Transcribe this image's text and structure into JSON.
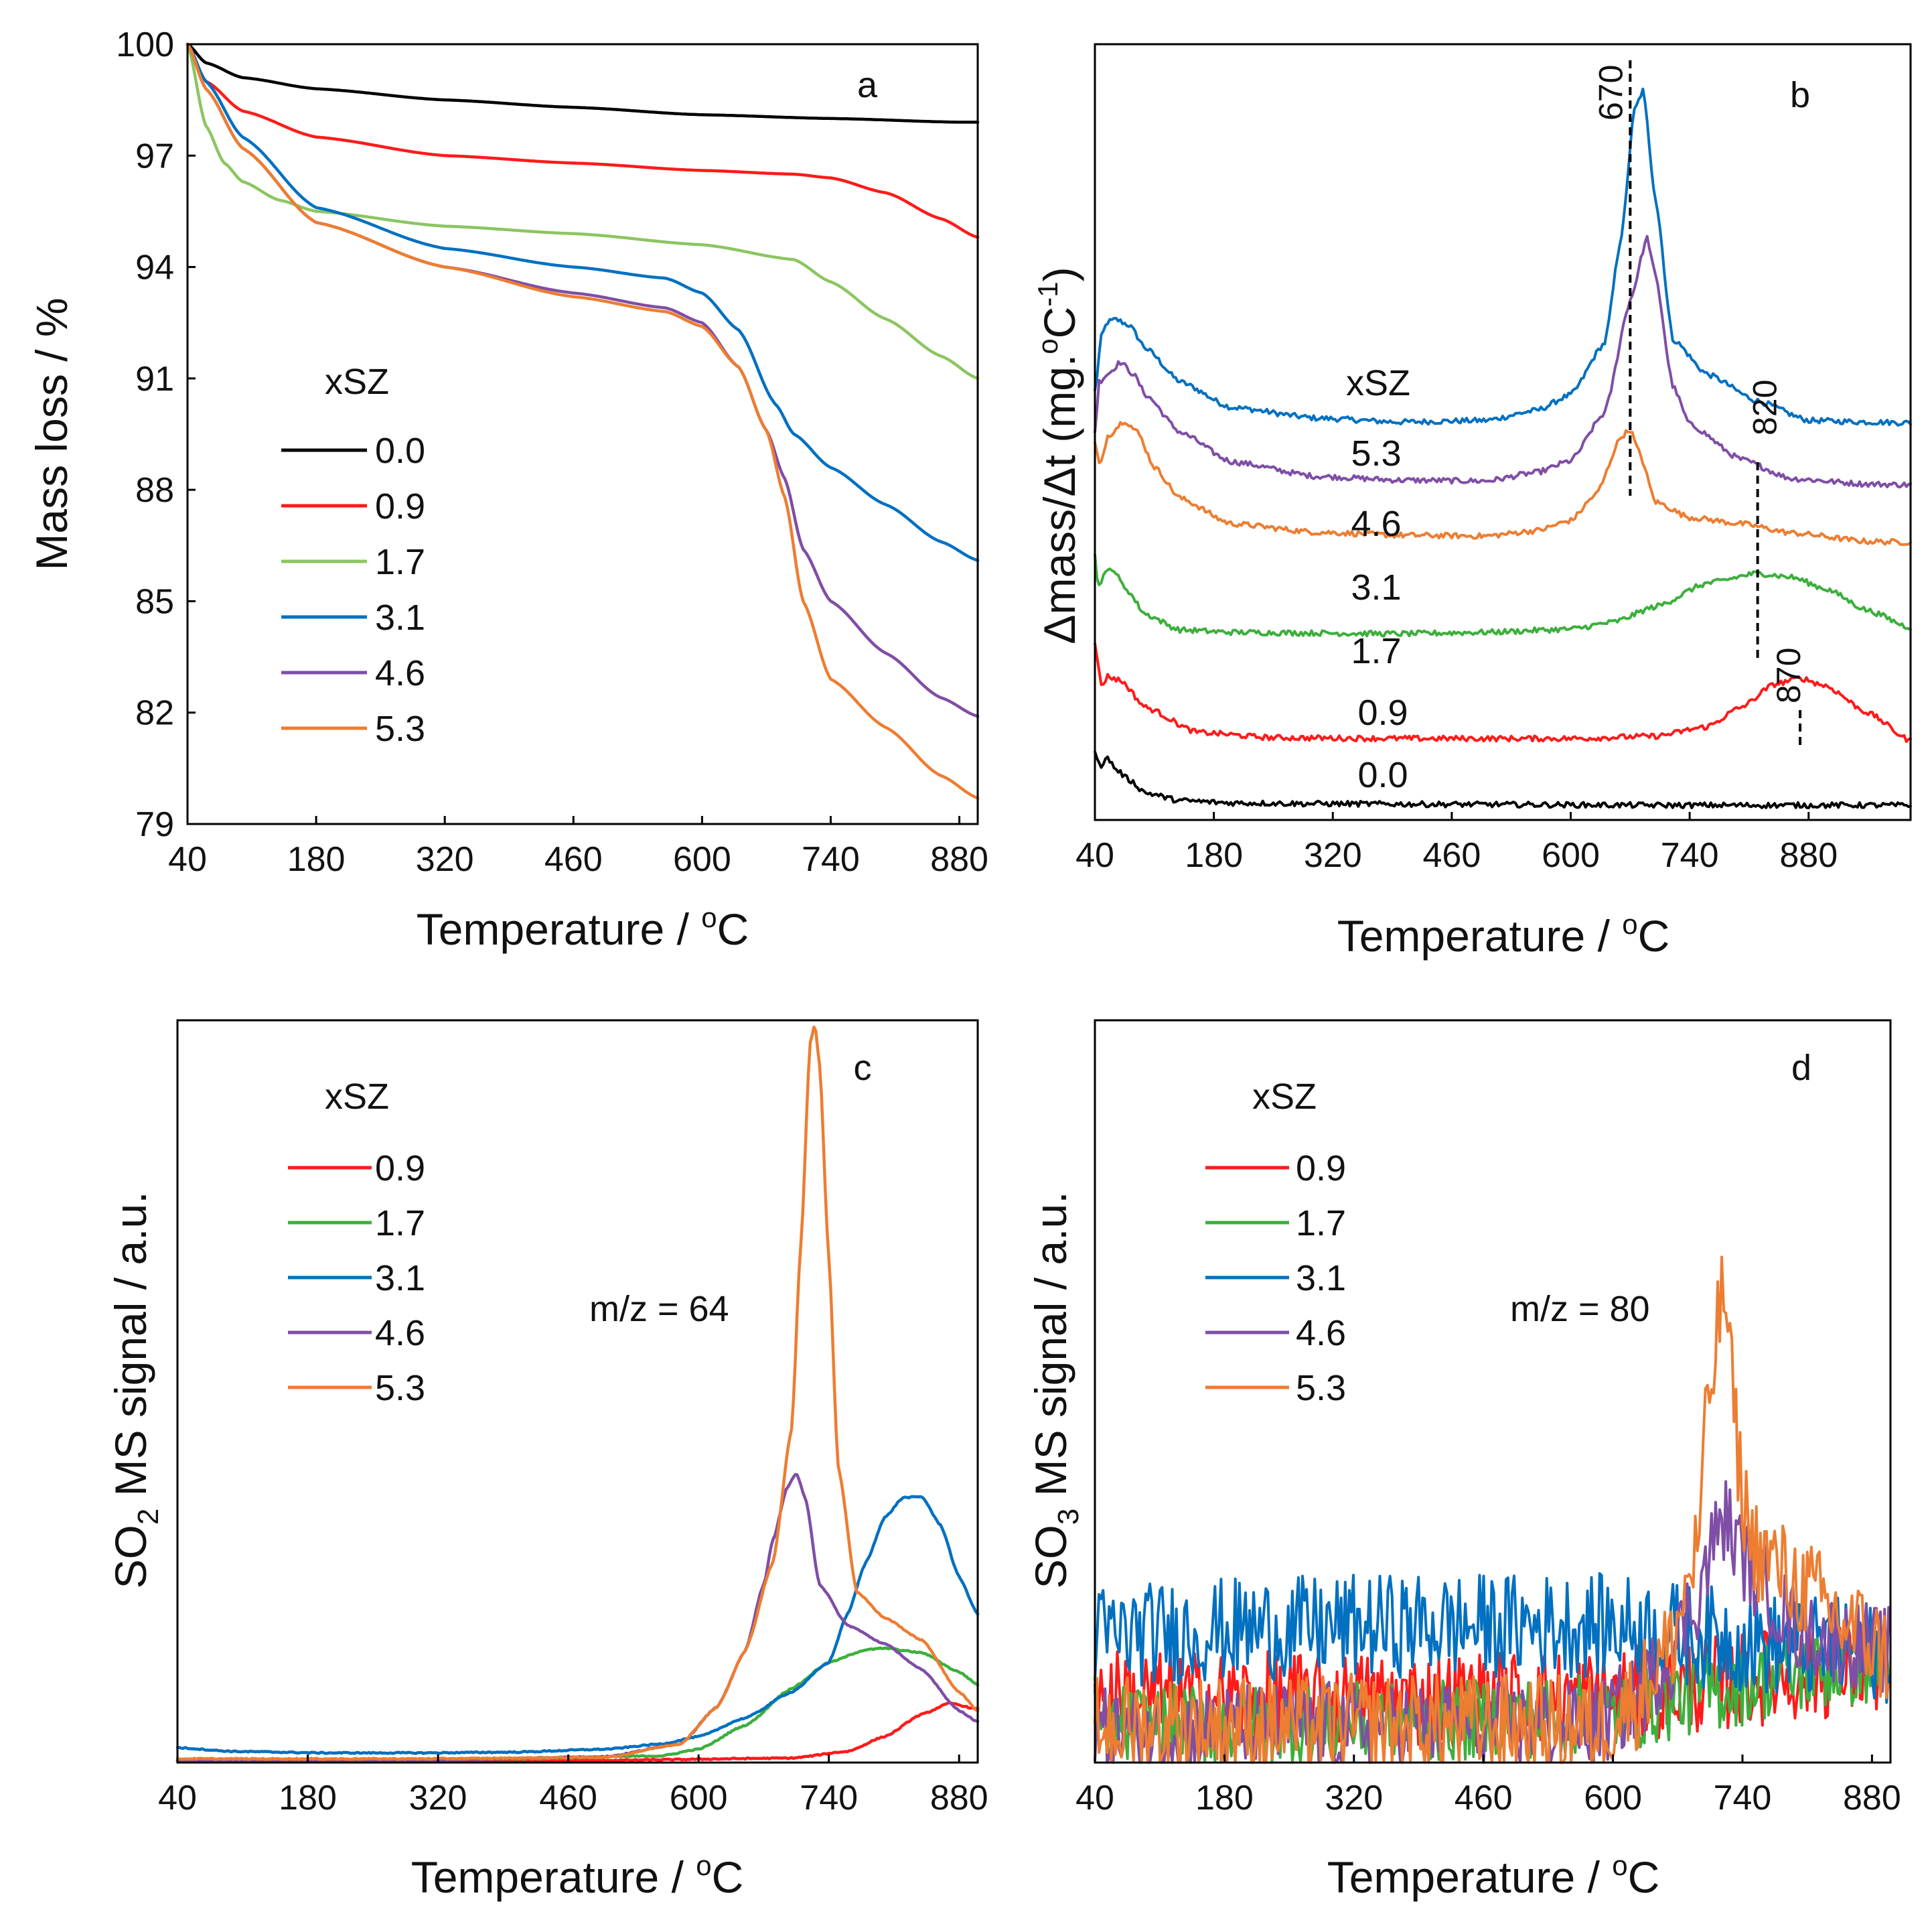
{
  "colors": {
    "0.0": "#000000",
    "0.9": "#ff1a1a",
    "1.7": "#8cc560",
    "3.1": "#0070c0",
    "4.6": "#7f4ea6",
    "5.3": "#ed7d31",
    "1.7_bcd": "#3caf3c"
  },
  "chart_data": [
    {
      "id": "a",
      "type": "line",
      "panel_label": "a",
      "xlabel": "Temperature / oC",
      "xlabel_main": "Temperature / ",
      "xlabel_sup": "o",
      "xlabel_unit": "C",
      "ylabel": "Mass loss / %",
      "xlim": [
        40,
        900
      ],
      "ylim": [
        79,
        100
      ],
      "xticks": [
        "40",
        "180",
        "320",
        "460",
        "600",
        "740",
        "880"
      ],
      "yticks": [
        "100",
        "97",
        "94",
        "91",
        "88",
        "85",
        "82",
        "79"
      ],
      "legend_title": "xSZ",
      "legend_position": "middle-left",
      "series": [
        {
          "name": "0.0",
          "x": [
            40,
            60,
            100,
            180,
            320,
            460,
            600,
            740,
            880,
            900
          ],
          "values": [
            100,
            99.5,
            99.1,
            98.8,
            98.5,
            98.3,
            98.1,
            98.0,
            97.9,
            97.9
          ]
        },
        {
          "name": "0.9",
          "x": [
            40,
            60,
            100,
            180,
            320,
            460,
            600,
            700,
            740,
            800,
            860,
            900
          ],
          "values": [
            100,
            99.0,
            98.2,
            97.5,
            97.0,
            96.8,
            96.6,
            96.5,
            96.4,
            96.0,
            95.3,
            94.8
          ]
        },
        {
          "name": "1.7",
          "x": [
            40,
            60,
            80,
            100,
            140,
            180,
            320,
            460,
            600,
            700,
            740,
            800,
            860,
            900
          ],
          "values": [
            100,
            97.8,
            96.8,
            96.3,
            95.8,
            95.5,
            95.1,
            94.9,
            94.6,
            94.2,
            93.6,
            92.6,
            91.6,
            91.0
          ]
        },
        {
          "name": "3.1",
          "x": [
            40,
            60,
            100,
            180,
            320,
            460,
            560,
            600,
            640,
            680,
            700,
            740,
            800,
            860,
            900
          ],
          "values": [
            100,
            99.0,
            97.5,
            95.6,
            94.5,
            94.0,
            93.7,
            93.3,
            92.3,
            90.3,
            89.5,
            88.6,
            87.6,
            86.6,
            86.1
          ]
        },
        {
          "name": "4.6",
          "x": [
            40,
            60,
            100,
            180,
            320,
            460,
            560,
            600,
            640,
            670,
            690,
            710,
            740,
            800,
            860,
            900
          ],
          "values": [
            100,
            98.8,
            97.2,
            95.2,
            94.0,
            93.3,
            92.9,
            92.5,
            91.3,
            89.6,
            88.3,
            86.4,
            85.0,
            83.6,
            82.4,
            81.9
          ]
        },
        {
          "name": "5.3",
          "x": [
            40,
            60,
            100,
            180,
            320,
            460,
            560,
            600,
            640,
            670,
            690,
            710,
            740,
            800,
            860,
            900
          ],
          "values": [
            100,
            98.8,
            97.2,
            95.2,
            94.0,
            93.2,
            92.8,
            92.4,
            91.3,
            89.6,
            87.8,
            85.0,
            82.9,
            81.6,
            80.3,
            79.7
          ]
        }
      ]
    },
    {
      "id": "b",
      "type": "line",
      "panel_label": "b",
      "xlabel": "Temperature / oC",
      "xlabel_main": "Temperature / ",
      "xlabel_sup": "o",
      "xlabel_unit": "C",
      "ylabel": "Δmass/Δt (mg.oC-1)",
      "ylabel_main": "Δmass/Δt (mg.",
      "ylabel_sup1": "o",
      "ylabel_mid": "C",
      "ylabel_sup2": "-1",
      "ylabel_end": ")",
      "xlim": [
        40,
        1000
      ],
      "ylim": [
        0,
        100
      ],
      "xticks": [
        "40",
        "180",
        "320",
        "460",
        "600",
        "740",
        "880"
      ],
      "legend_title": "xSZ",
      "annotations": [
        "670",
        "820",
        "870"
      ],
      "series": [
        {
          "name": "5.3",
          "label": "5.3",
          "x": [
            40,
            48,
            55,
            65,
            80,
            100,
            140,
            200,
            300,
            400,
            500,
            560,
            600,
            640,
            660,
            675,
            685,
            700,
            720,
            760,
            820,
            880,
            950,
            1000
          ],
          "values": [
            55.3,
            62.5,
            64.2,
            64.5,
            63.8,
            60.8,
            56.5,
            53.2,
            51.8,
            51.3,
            51.5,
            52.8,
            54.8,
            61.5,
            75.5,
            91.5,
            94.0,
            80.0,
            62.0,
            57.5,
            54.0,
            51.5,
            51.3,
            51.2
          ]
        },
        {
          "name": "4.6",
          "label": "4.6",
          "x": [
            40,
            45,
            55,
            70,
            85,
            100,
            140,
            200,
            300,
            400,
            500,
            560,
            600,
            640,
            670,
            690,
            700,
            720,
            740,
            800,
            860,
            950,
            1000
          ],
          "values": [
            50.0,
            56.5,
            57.5,
            59.0,
            57.5,
            54.8,
            50.0,
            46.2,
            44.3,
            43.8,
            43.7,
            44.8,
            46.3,
            52.5,
            67.0,
            75.0,
            70.0,
            56.0,
            51.0,
            46.5,
            44.0,
            43.3,
            43.2
          ]
        },
        {
          "name": "3.1",
          "label": "3.1",
          "x": [
            40,
            46,
            55,
            75,
            90,
            110,
            140,
            200,
            300,
            400,
            500,
            560,
            600,
            630,
            660,
            670,
            680,
            700,
            740,
            800,
            860,
            950,
            1000
          ],
          "values": [
            48.5,
            45.5,
            49.5,
            51.5,
            50.0,
            45.5,
            41.5,
            38.2,
            37.1,
            36.7,
            36.6,
            37.3,
            38.6,
            42.0,
            49.5,
            50.3,
            47.5,
            41.0,
            39.0,
            38.2,
            37.0,
            35.9,
            35.8
          ]
        },
        {
          "name": "1.7",
          "label": "1.7",
          "x": [
            40,
            44,
            50,
            60,
            75,
            100,
            140,
            200,
            300,
            400,
            500,
            600,
            650,
            700,
            760,
            820,
            860,
            900,
            950,
            1000
          ],
          "values": [
            34.0,
            30.0,
            31.5,
            32.5,
            30.0,
            26.5,
            24.5,
            24.2,
            24.1,
            24.0,
            24.2,
            24.6,
            25.5,
            27.5,
            30.5,
            31.8,
            31.3,
            29.8,
            27.0,
            24.8
          ]
        },
        {
          "name": "0.9",
          "label": "0.9",
          "x": [
            40,
            44,
            48,
            55,
            70,
            100,
            160,
            250,
            400,
            600,
            700,
            760,
            800,
            840,
            870,
            900,
            950,
            1000
          ],
          "values": [
            23.0,
            19.5,
            17.3,
            18.5,
            18.0,
            14.5,
            11.3,
            10.6,
            10.5,
            10.5,
            10.8,
            12.0,
            14.5,
            17.5,
            18.3,
            17.3,
            13.8,
            10.2
          ]
        },
        {
          "name": "0.0",
          "label": "0.0",
          "x": [
            40,
            48,
            55,
            65,
            80,
            100,
            140,
            200,
            300,
            500,
            700,
            900,
            1000
          ],
          "values": [
            8.7,
            7.0,
            8.0,
            6.5,
            5.2,
            3.5,
            2.5,
            2.2,
            2.1,
            2.0,
            1.9,
            1.9,
            1.9
          ]
        }
      ]
    },
    {
      "id": "c",
      "type": "line",
      "panel_label": "c",
      "xlabel": "Temperature / oC",
      "xlabel_main": "Temperature / ",
      "xlabel_sup": "o",
      "xlabel_unit": "C",
      "ylabel": "SO2 MS signal / a.u.",
      "ylabel_main": "SO",
      "ylabel_sub": "2",
      "ylabel_rest": " MS signal / a.u.",
      "xlim": [
        40,
        900
      ],
      "ylim": [
        0,
        100
      ],
      "xticks": [
        "40",
        "180",
        "320",
        "460",
        "600",
        "740",
        "880"
      ],
      "legend_title": "xSZ",
      "annotation": "m/z = 64",
      "series": [
        {
          "name": "0.9",
          "x": [
            40,
            500,
            700,
            760,
            800,
            840,
            870,
            900
          ],
          "values": [
            0.2,
            0.3,
            0.6,
            1.5,
            3.5,
            6.5,
            8.0,
            7.2
          ]
        },
        {
          "name": "1.7",
          "x": [
            40,
            400,
            560,
            600,
            650,
            700,
            740,
            780,
            800,
            840,
            880,
            900
          ],
          "values": [
            0.4,
            0.5,
            0.9,
            1.8,
            5.0,
            10.0,
            13.5,
            15.2,
            15.4,
            14.8,
            12.2,
            10.5
          ]
        },
        {
          "name": "3.1",
          "x": [
            40,
            100,
            200,
            300,
            400,
            500,
            560,
            600,
            650,
            700,
            740,
            760,
            780,
            800,
            820,
            840,
            860,
            880,
            900
          ],
          "values": [
            2.0,
            1.5,
            1.3,
            1.3,
            1.4,
            1.8,
            2.5,
            3.5,
            6.0,
            9.5,
            13.5,
            20.0,
            27.0,
            33.0,
            35.7,
            35.8,
            32.0,
            25.0,
            20.0
          ]
        },
        {
          "name": "4.6",
          "x": [
            40,
            300,
            500,
            580,
            620,
            650,
            670,
            680,
            695,
            705,
            715,
            730,
            760,
            800,
            840,
            880,
            900
          ],
          "values": [
            0.3,
            0.3,
            0.8,
            2.5,
            7.5,
            15.0,
            24.0,
            30.0,
            37.0,
            39.0,
            35.5,
            24.0,
            18.5,
            16.0,
            12.5,
            7.0,
            5.5
          ]
        },
        {
          "name": "5.3",
          "x": [
            40,
            300,
            500,
            580,
            620,
            650,
            680,
            700,
            710,
            720,
            725,
            730,
            740,
            750,
            770,
            800,
            840,
            880,
            900
          ],
          "values": [
            0.5,
            0.5,
            0.7,
            2.5,
            7.5,
            15.0,
            27.0,
            45.0,
            70.0,
            97.0,
            99.5,
            94.0,
            68.0,
            40.0,
            23.0,
            19.5,
            16.5,
            9.5,
            7.0
          ]
        }
      ]
    },
    {
      "id": "d",
      "type": "line",
      "panel_label": "d",
      "xlabel": "Temperature / oC",
      "xlabel_main": "Temperature / ",
      "xlabel_sup": "o",
      "xlabel_unit": "C",
      "ylabel": "SO3 MS signal / a.u.",
      "ylabel_main": "SO",
      "ylabel_sub": "3",
      "ylabel_rest": " MS signal / a.u.",
      "xlim": [
        40,
        900
      ],
      "ylim": [
        0,
        100
      ],
      "xticks": [
        "40",
        "180",
        "320",
        "460",
        "600",
        "740",
        "880"
      ],
      "legend_title": "xSZ",
      "annotation": "m/z = 80",
      "series": [
        {
          "name": "0.9",
          "x": [
            40,
            200,
            400,
            600,
            700,
            800,
            900
          ],
          "values": [
            9.0,
            8.5,
            8.5,
            9.0,
            10.5,
            12.0,
            13.0
          ]
        },
        {
          "name": "1.7",
          "x": [
            40,
            200,
            400,
            600,
            700,
            800,
            900
          ],
          "values": [
            5.0,
            5.0,
            5.5,
            6.5,
            9.5,
            12.0,
            13.5
          ]
        },
        {
          "name": "3.1",
          "x": [
            40,
            200,
            400,
            600,
            700,
            800,
            900
          ],
          "values": [
            17.0,
            18.0,
            18.5,
            18.5,
            17.0,
            15.5,
            15.0
          ]
        },
        {
          "name": "4.6",
          "x": [
            40,
            300,
            580,
            620,
            660,
            690,
            710,
            720,
            740,
            760,
            800,
            860,
            900
          ],
          "values": [
            4.0,
            5.0,
            5.0,
            8.0,
            14.0,
            22.0,
            30.0,
            33.0,
            28.0,
            24.0,
            18.0,
            16.0,
            15.0
          ]
        },
        {
          "name": "5.3",
          "x": [
            40,
            300,
            580,
            620,
            660,
            690,
            705,
            715,
            720,
            725,
            730,
            740,
            750,
            760,
            800,
            860,
            900
          ],
          "values": [
            5.0,
            5.0,
            5.0,
            8.0,
            15.0,
            28.0,
            50.0,
            60.0,
            64.0,
            58.0,
            48.0,
            36.0,
            30.0,
            28.0,
            24.0,
            18.0,
            14.0
          ]
        }
      ]
    }
  ]
}
